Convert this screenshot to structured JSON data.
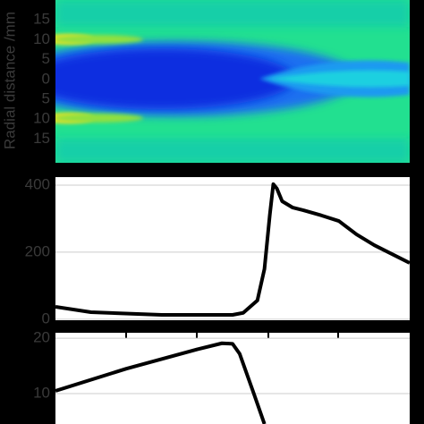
{
  "chart_data": [
    {
      "type": "heatmap",
      "ylabel": "Radial distance /mm",
      "ylim": [
        -21,
        20
      ],
      "yticks": [
        15,
        10,
        5,
        0,
        {
          "value": -5,
          "label": "5"
        },
        {
          "value": -10,
          "label": "10"
        },
        {
          "value": -15,
          "label": "15"
        }
      ]
    },
    {
      "type": "line",
      "color": "#000000",
      "grid": true,
      "xlim": [
        0,
        100
      ],
      "x": [
        0,
        10,
        30,
        50,
        53,
        57,
        59,
        60.5,
        61.5,
        62.5,
        64,
        67,
        70,
        75,
        80,
        85,
        90,
        100
      ],
      "values": [
        37,
        21,
        13,
        13,
        19,
        56,
        150,
        310,
        403,
        390,
        352,
        333,
        325,
        310,
        293,
        253,
        221,
        168
      ],
      "ylim": [
        -3,
        424
      ],
      "yticks": [
        0,
        200,
        400
      ]
    },
    {
      "type": "line",
      "color": "#000000",
      "grid": true,
      "xlim": [
        0,
        100
      ],
      "x": [
        0,
        20,
        40,
        47,
        50,
        52,
        56,
        59
      ],
      "values": [
        10.5,
        14.5,
        18,
        19.1,
        19,
        17.2,
        10,
        4.5
      ],
      "ylim": [
        4.5,
        21
      ],
      "yticks": [
        10,
        20
      ]
    }
  ]
}
